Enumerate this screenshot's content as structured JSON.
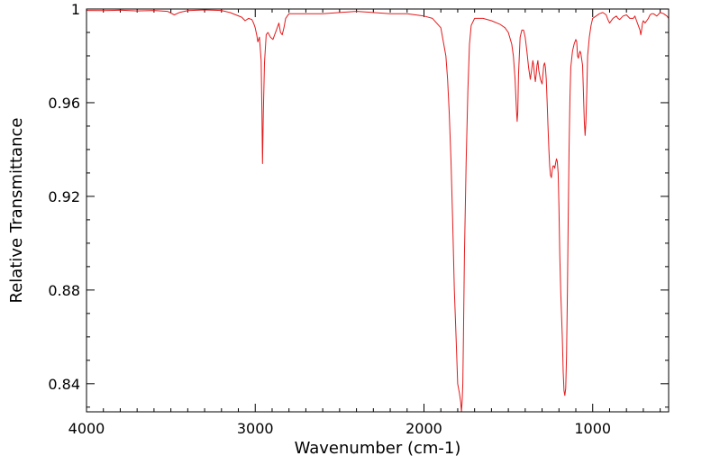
{
  "colors": {
    "line": "#e41a1c",
    "axis": "#000000",
    "background": "#ffffff"
  },
  "chart_data": {
    "type": "line",
    "title": "",
    "xlabel": "Wavenumber (cm-1)",
    "ylabel": "Relative Transmittance",
    "xlim": [
      4000,
      550
    ],
    "x_reversed": true,
    "ylim": [
      0.828,
      1.0
    ],
    "grid": false,
    "legend": "none",
    "x_ticks": [
      4000,
      3000,
      2000,
      1000
    ],
    "x_tick_labels": [
      "4000",
      "3000",
      "2000",
      "1000"
    ],
    "y_ticks": [
      0.84,
      0.88,
      0.92,
      0.96,
      1.0
    ],
    "y_tick_labels": [
      "0.84",
      "0.88",
      "0.92",
      "0.96",
      "1"
    ],
    "series": [
      {
        "x": [
          4000,
          3900,
          3800,
          3700,
          3600,
          3520,
          3480,
          3450,
          3400,
          3300,
          3200,
          3150,
          3080,
          3060,
          3040,
          3020,
          3010,
          3000,
          2990,
          2985,
          2975,
          2965,
          2960,
          2957,
          2952,
          2945,
          2935,
          2925,
          2910,
          2895,
          2885,
          2875,
          2860,
          2850,
          2840,
          2830,
          2820,
          2800,
          2700,
          2600,
          2500,
          2400,
          2300,
          2200,
          2100,
          2000,
          1950,
          1900,
          1870,
          1860,
          1850,
          1840,
          1830,
          1820,
          1810,
          1800,
          1790,
          1782,
          1778,
          1774,
          1770,
          1766,
          1760,
          1750,
          1740,
          1730,
          1720,
          1700,
          1650,
          1600,
          1550,
          1520,
          1500,
          1480,
          1470,
          1460,
          1452,
          1448,
          1444,
          1440,
          1430,
          1420,
          1410,
          1400,
          1390,
          1380,
          1370,
          1360,
          1355,
          1350,
          1345,
          1340,
          1335,
          1330,
          1325,
          1320,
          1310,
          1300,
          1295,
          1290,
          1285,
          1280,
          1275,
          1270,
          1265,
          1260,
          1255,
          1250,
          1245,
          1240,
          1235,
          1230,
          1225,
          1220,
          1215,
          1210,
          1205,
          1200,
          1195,
          1190,
          1185,
          1180,
          1175,
          1170,
          1165,
          1160,
          1155,
          1150,
          1145,
          1140,
          1135,
          1130,
          1120,
          1110,
          1100,
          1095,
          1090,
          1085,
          1080,
          1075,
          1070,
          1060,
          1055,
          1050,
          1045,
          1040,
          1035,
          1030,
          1020,
          1010,
          1000,
          980,
          960,
          940,
          920,
          910,
          900,
          880,
          860,
          850,
          840,
          820,
          800,
          780,
          760,
          750,
          740,
          730,
          720,
          715,
          710,
          705,
          700,
          690,
          680,
          670,
          660,
          650,
          640,
          620,
          600,
          580,
          560,
          550
        ],
        "y": [
          0.9994,
          0.9993,
          0.9995,
          0.9992,
          0.9994,
          0.999,
          0.9975,
          0.9985,
          0.9993,
          0.9996,
          0.9994,
          0.9985,
          0.9965,
          0.995,
          0.996,
          0.9955,
          0.994,
          0.992,
          0.9885,
          0.986,
          0.988,
          0.978,
          0.955,
          0.934,
          0.955,
          0.977,
          0.989,
          0.99,
          0.988,
          0.987,
          0.989,
          0.991,
          0.994,
          0.99,
          0.989,
          0.992,
          0.996,
          0.998,
          0.998,
          0.998,
          0.9985,
          0.999,
          0.9985,
          0.998,
          0.998,
          0.997,
          0.996,
          0.992,
          0.98,
          0.97,
          0.955,
          0.935,
          0.91,
          0.88,
          0.86,
          0.84,
          0.836,
          0.832,
          0.828,
          0.832,
          0.84,
          0.86,
          0.895,
          0.935,
          0.965,
          0.985,
          0.993,
          0.996,
          0.996,
          0.995,
          0.9935,
          0.992,
          0.99,
          0.985,
          0.98,
          0.97,
          0.957,
          0.952,
          0.956,
          0.972,
          0.988,
          0.991,
          0.991,
          0.988,
          0.982,
          0.975,
          0.97,
          0.975,
          0.978,
          0.976,
          0.972,
          0.969,
          0.972,
          0.976,
          0.978,
          0.974,
          0.97,
          0.968,
          0.972,
          0.976,
          0.977,
          0.975,
          0.97,
          0.96,
          0.95,
          0.94,
          0.933,
          0.929,
          0.928,
          0.931,
          0.933,
          0.933,
          0.932,
          0.934,
          0.936,
          0.935,
          0.93,
          0.915,
          0.895,
          0.88,
          0.87,
          0.86,
          0.845,
          0.837,
          0.835,
          0.838,
          0.852,
          0.88,
          0.912,
          0.94,
          0.962,
          0.975,
          0.982,
          0.985,
          0.987,
          0.986,
          0.98,
          0.979,
          0.981,
          0.982,
          0.981,
          0.976,
          0.965,
          0.952,
          0.946,
          0.952,
          0.965,
          0.98,
          0.988,
          0.993,
          0.996,
          0.997,
          0.998,
          0.9985,
          0.9975,
          0.9955,
          0.994,
          0.996,
          0.997,
          0.996,
          0.9955,
          0.997,
          0.9975,
          0.996,
          0.996,
          0.997,
          0.995,
          0.993,
          0.991,
          0.989,
          0.991,
          0.994,
          0.995,
          0.994,
          0.995,
          0.996,
          0.9975,
          0.998,
          0.998,
          0.997,
          0.9985,
          0.998,
          0.997,
          0.996
        ]
      }
    ]
  }
}
